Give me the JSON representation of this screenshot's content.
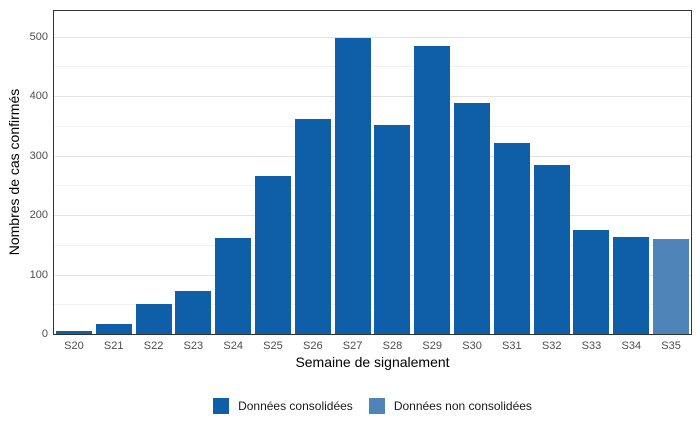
{
  "chart_data": {
    "type": "bar",
    "title": "",
    "xlabel": "Semaine de signalement",
    "ylabel": "Nombres de cas confirmés",
    "categories": [
      "S20",
      "S21",
      "S22",
      "S23",
      "S24",
      "S25",
      "S26",
      "S27",
      "S28",
      "S29",
      "S30",
      "S31",
      "S32",
      "S33",
      "S34",
      "S35"
    ],
    "values": [
      5,
      16,
      50,
      73,
      161,
      265,
      362,
      498,
      352,
      485,
      388,
      321,
      284,
      175,
      163,
      160
    ],
    "bar_series": [
      "consolidated",
      "consolidated",
      "consolidated",
      "consolidated",
      "consolidated",
      "consolidated",
      "consolidated",
      "consolidated",
      "consolidated",
      "consolidated",
      "consolidated",
      "consolidated",
      "consolidated",
      "consolidated",
      "consolidated",
      "non_consolidated"
    ],
    "colors": {
      "consolidated": "#0f5fa8",
      "non_consolidated": "#4e84b8",
      "panel_border": "#333333",
      "grid_major": "#e3e3e3",
      "grid_minor": "#f1f1f1",
      "tick_label": "#4d4d4d"
    },
    "ylim": [
      0,
      543
    ],
    "yticks": [
      0,
      100,
      200,
      300,
      400,
      500
    ],
    "yticks_minor": [
      50,
      150,
      250,
      350,
      450
    ],
    "grid": true,
    "legend": {
      "position": "bottom",
      "entries": [
        {
          "label": "Données consolidées",
          "series": "consolidated",
          "color": "#0f5fa8"
        },
        {
          "label": "Données non consolidées",
          "series": "non_consolidated",
          "color": "#4e84b8"
        }
      ]
    }
  }
}
